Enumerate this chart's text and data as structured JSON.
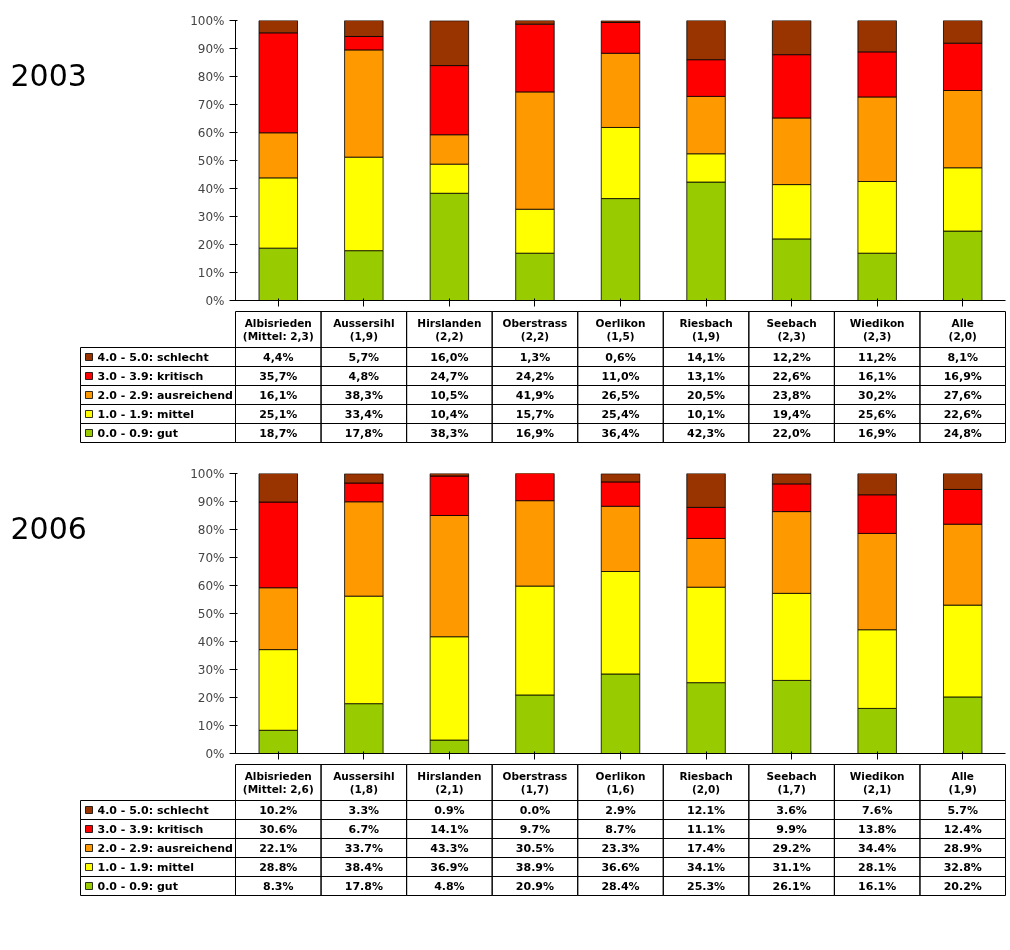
{
  "chart_data": [
    {
      "type": "bar",
      "stacked": true,
      "title": "2003",
      "tick_labels": "y",
      "legend": "bottom",
      "grid": false,
      "categories": [
        "Albisrieden\n(Mittel: 2,3)",
        "Aussersihl\n(1,9)",
        "Hirslanden\n(2,2)",
        "Oberstrass\n(2,2)",
        "Oerlikon\n(1,5)",
        "Riesbach\n(1,9)",
        "Seebach\n(2,3)",
        "Wiedikon\n(2,3)",
        "Alle\n(2,0)"
      ],
      "ylim": [
        0,
        100
      ],
      "yticks": [
        {
          "value": 0,
          "label": "0%"
        },
        {
          "value": 10,
          "label": "10%"
        },
        {
          "value": 20,
          "label": "20%"
        },
        {
          "value": 30,
          "label": "30%"
        },
        {
          "value": 40,
          "label": "40%"
        },
        {
          "value": 50,
          "label": "50%"
        },
        {
          "value": 60,
          "label": "60%"
        },
        {
          "value": 70,
          "label": "70%"
        },
        {
          "value": 80,
          "label": "80%"
        },
        {
          "value": 90,
          "label": "90%"
        },
        {
          "value": 100,
          "label": "100%"
        }
      ],
      "series": [
        {
          "name": "0.0 - 0.9: gut",
          "color": "#99cc00",
          "values": [
            18.7,
            17.8,
            38.3,
            16.9,
            36.4,
            42.3,
            22.0,
            16.9,
            24.8
          ],
          "value_labels": [
            "18,7%",
            "17,8%",
            "38,3%",
            "16,9%",
            "36,4%",
            "42,3%",
            "22,0%",
            "16,9%",
            "24,8%"
          ]
        },
        {
          "name": "1.0 - 1.9: mittel",
          "color": "#ffff00",
          "values": [
            25.1,
            33.4,
            10.4,
            15.7,
            25.4,
            10.1,
            19.4,
            25.6,
            22.6
          ],
          "value_labels": [
            "25,1%",
            "33,4%",
            "10,4%",
            "15,7%",
            "25,4%",
            "10,1%",
            "19,4%",
            "25,6%",
            "22,6%"
          ]
        },
        {
          "name": "2.0 - 2.9: ausreichend",
          "color": "#ff9900",
          "values": [
            16.1,
            38.3,
            10.5,
            41.9,
            26.5,
            20.5,
            23.8,
            30.2,
            27.6
          ],
          "value_labels": [
            "16,1%",
            "38,3%",
            "10,5%",
            "41,9%",
            "26,5%",
            "20,5%",
            "23,8%",
            "30,2%",
            "27,6%"
          ]
        },
        {
          "name": "3.0 - 3.9: kritisch",
          "color": "#ff0000",
          "values": [
            35.7,
            4.8,
            24.7,
            24.2,
            11.0,
            13.1,
            22.6,
            16.1,
            16.9
          ],
          "value_labels": [
            "35,7%",
            "4,8%",
            "24,7%",
            "24,2%",
            "11,0%",
            "13,1%",
            "22,6%",
            "16,1%",
            "16,9%"
          ]
        },
        {
          "name": "4.0 - 5.0: schlecht",
          "color": "#993300",
          "values": [
            4.4,
            5.7,
            16.0,
            1.3,
            0.6,
            14.1,
            12.2,
            11.2,
            8.1
          ],
          "value_labels": [
            "4,4%",
            "5,7%",
            "16,0%",
            "1,3%",
            "0,6%",
            "14,1%",
            "12,2%",
            "11,2%",
            "8,1%"
          ]
        }
      ]
    },
    {
      "type": "bar",
      "stacked": true,
      "title": "2006",
      "tick_labels": "y",
      "legend": "bottom",
      "grid": false,
      "categories": [
        "Albisrieden\n(Mittel: 2,6)",
        "Aussersihl\n(1,8)",
        "Hirslanden\n(2,1)",
        "Oberstrass\n(1,7)",
        "Oerlikon\n(1,6)",
        "Riesbach\n(2,0)",
        "Seebach\n(1,7)",
        "Wiedikon\n(2,1)",
        "Alle\n(1,9)"
      ],
      "ylim": [
        0,
        100
      ],
      "yticks": [
        {
          "value": 0,
          "label": "0%"
        },
        {
          "value": 10,
          "label": "10%"
        },
        {
          "value": 20,
          "label": "20%"
        },
        {
          "value": 30,
          "label": "30%"
        },
        {
          "value": 40,
          "label": "40%"
        },
        {
          "value": 50,
          "label": "50%"
        },
        {
          "value": 60,
          "label": "60%"
        },
        {
          "value": 70,
          "label": "70%"
        },
        {
          "value": 80,
          "label": "80%"
        },
        {
          "value": 90,
          "label": "90%"
        },
        {
          "value": 100,
          "label": "100%"
        }
      ],
      "series": [
        {
          "name": "0.0 - 0.9: gut",
          "color": "#99cc00",
          "values": [
            8.3,
            17.8,
            4.8,
            20.9,
            28.4,
            25.3,
            26.1,
            16.1,
            20.2
          ],
          "value_labels": [
            "8.3%",
            "17.8%",
            "4.8%",
            "20.9%",
            "28.4%",
            "25.3%",
            "26.1%",
            "16.1%",
            "20.2%"
          ]
        },
        {
          "name": "1.0 - 1.9: mittel",
          "color": "#ffff00",
          "values": [
            28.8,
            38.4,
            36.9,
            38.9,
            36.6,
            34.1,
            31.1,
            28.1,
            32.8
          ],
          "value_labels": [
            "28.8%",
            "38.4%",
            "36.9%",
            "38.9%",
            "36.6%",
            "34.1%",
            "31.1%",
            "28.1%",
            "32.8%"
          ]
        },
        {
          "name": "2.0 - 2.9: ausreichend",
          "color": "#ff9900",
          "values": [
            22.1,
            33.7,
            43.3,
            30.5,
            23.3,
            17.4,
            29.2,
            34.4,
            28.9
          ],
          "value_labels": [
            "22.1%",
            "33.7%",
            "43.3%",
            "30.5%",
            "23.3%",
            "17.4%",
            "29.2%",
            "34.4%",
            "28.9%"
          ]
        },
        {
          "name": "3.0 - 3.9: kritisch",
          "color": "#ff0000",
          "values": [
            30.6,
            6.7,
            14.1,
            9.7,
            8.7,
            11.1,
            9.9,
            13.8,
            12.4
          ],
          "value_labels": [
            "30.6%",
            "6.7%",
            "14.1%",
            "9.7%",
            "8.7%",
            "11.1%",
            "9.9%",
            "13.8%",
            "12.4%"
          ]
        },
        {
          "name": "4.0 - 5.0: schlecht",
          "color": "#993300",
          "values": [
            10.2,
            3.3,
            0.9,
            0.0,
            2.9,
            12.1,
            3.6,
            7.6,
            5.7
          ],
          "value_labels": [
            "10.2%",
            "3.3%",
            "0.9%",
            "0.0%",
            "2.9%",
            "12.1%",
            "3.6%",
            "7.6%",
            "5.7%"
          ]
        }
      ]
    }
  ]
}
